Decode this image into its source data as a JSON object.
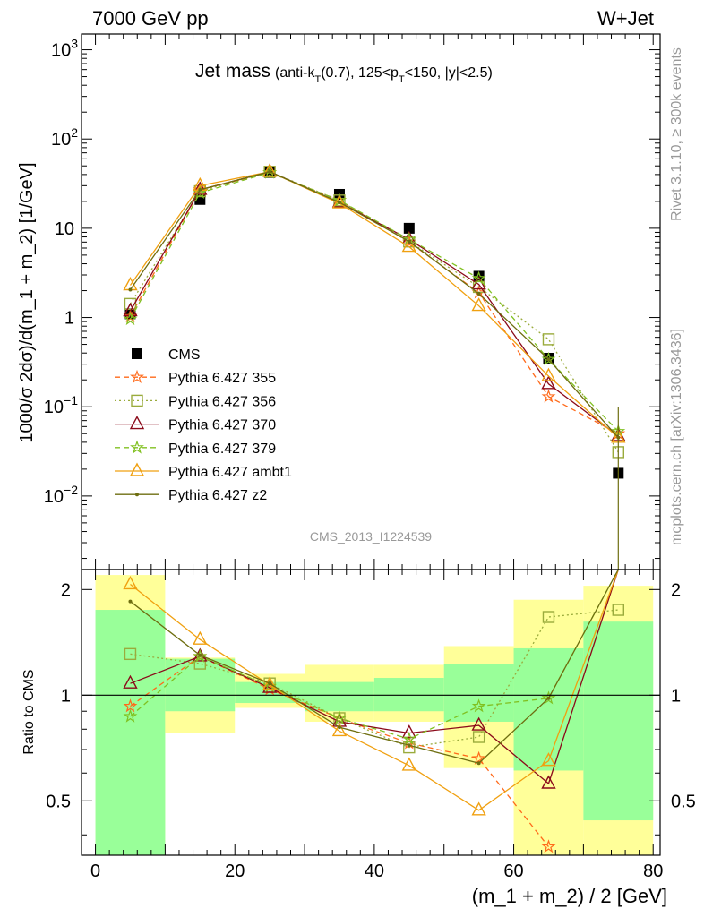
{
  "header": {
    "energy_label": "7000 GeV pp",
    "process_label": "W+Jet",
    "plot_title": "Jet mass",
    "plot_subtitle": "(anti-kT(0.7), 125<pT<150, |y|<2.5)",
    "side_label_rivet": "Rivet 3.1.10, ≥ 300k events",
    "side_label_source": "mcplots.cern.ch [arXiv:1306.3436]",
    "analysis_id": "CMS_2013_I1224539"
  },
  "chart_data": [
    {
      "panel": "main",
      "type": "scatter",
      "ylabel": "1000/σ 2dσ)/d(m_1 + m_2) [1/GeV]",
      "yscale": "log",
      "ylim": [
        0.0015,
        1500
      ],
      "xlim": [
        -2,
        81
      ],
      "y_tick_labels": [
        "10^-2",
        "10^-1",
        "1",
        "10",
        "10^2",
        "10^3"
      ],
      "legend_position": "left, below middle",
      "x": [
        5,
        15,
        25,
        35,
        45,
        55,
        65,
        75
      ],
      "series": [
        {
          "name": "CMS",
          "style": "data",
          "color": "#000000",
          "marker": "square-filled",
          "line": "none",
          "values": [
            1.1,
            21,
            42,
            24,
            10,
            2.9,
            0.35,
            0.018
          ]
        },
        {
          "name": "Pythia 6.427 355",
          "style": "mc",
          "color": "#ff6a1a",
          "marker": "star",
          "line": "dashed",
          "values": [
            1.03,
            27,
            42,
            20.5,
            7.0,
            1.9,
            0.13,
            0.05
          ]
        },
        {
          "name": "Pythia 6.427 356",
          "style": "mc",
          "color": "#9aab3c",
          "marker": "square-open",
          "line": "dotted",
          "values": [
            1.42,
            26,
            43,
            20.5,
            7.1,
            2.2,
            0.57,
            0.031
          ]
        },
        {
          "name": "Pythia 6.427 370",
          "style": "mc",
          "color": "#8b0a1a",
          "marker": "triangle-open",
          "line": "solid",
          "values": [
            1.18,
            27,
            43,
            19.5,
            7.5,
            2.35,
            0.18,
            0.047
          ]
        },
        {
          "name": "Pythia 6.427 379",
          "style": "mc",
          "color": "#80c020",
          "marker": "star",
          "line": "dashed",
          "values": [
            0.96,
            25,
            42,
            20.5,
            7.5,
            2.75,
            0.34,
            0.053
          ]
        },
        {
          "name": "Pythia 6.427 ambt1",
          "style": "mc",
          "color": "#f0a010",
          "marker": "triangle-open",
          "line": "solid",
          "values": [
            2.3,
            30,
            43,
            19,
            6.2,
            1.35,
            0.22,
            0.045
          ]
        },
        {
          "name": "Pythia 6.427 z2",
          "style": "mc",
          "color": "#6e6e10",
          "marker": "dot",
          "line": "solid",
          "values": [
            2.05,
            27,
            43,
            19.5,
            7.1,
            1.85,
            0.34,
            0.045
          ]
        }
      ]
    },
    {
      "panel": "ratio",
      "type": "line",
      "ylabel": "Ratio to CMS",
      "xlabel": "(m_1 + m_2) / 2 [GeV]",
      "ylim": [
        0.35,
        2.28
      ],
      "xlim": [
        -2,
        81
      ],
      "x_ticks": [
        0,
        20,
        40,
        60,
        80
      ],
      "y_tick_labels": [
        "0.5",
        "1",
        "2"
      ],
      "bands": {
        "bin_edges": [
          0,
          10,
          20,
          30,
          40,
          50,
          60,
          70,
          80
        ],
        "yellow_low": [
          0.2,
          0.78,
          0.92,
          0.84,
          0.84,
          0.62,
          0.2,
          0.2
        ],
        "yellow_high": [
          2.2,
          1.28,
          1.15,
          1.22,
          1.22,
          1.38,
          1.87,
          2.05
        ],
        "green_low": [
          0.2,
          0.9,
          0.95,
          0.9,
          0.9,
          0.84,
          0.61,
          0.44
        ],
        "green_high": [
          1.75,
          1.27,
          1.09,
          1.09,
          1.12,
          1.23,
          1.36,
          1.62
        ],
        "yellow_color": "#ffff99",
        "green_color": "#99ff99"
      },
      "x": [
        5,
        15,
        25,
        35,
        45,
        55,
        65,
        75
      ],
      "series": [
        {
          "name": "Pythia 6.427 355",
          "color": "#ff6a1a",
          "values": [
            0.93,
            1.29,
            1.04,
            0.86,
            0.73,
            0.66,
            0.37,
            null
          ]
        },
        {
          "name": "Pythia 6.427 356",
          "color": "#9aab3c",
          "values": [
            1.31,
            1.23,
            1.08,
            0.86,
            0.71,
            0.76,
            1.67,
            1.75
          ]
        },
        {
          "name": "Pythia 6.427 370",
          "color": "#8b0a1a",
          "values": [
            1.08,
            1.29,
            1.05,
            0.84,
            0.78,
            0.82,
            0.56,
            2.5
          ]
        },
        {
          "name": "Pythia 6.427 379",
          "color": "#80c020",
          "values": [
            0.87,
            1.29,
            1.06,
            0.86,
            0.75,
            0.93,
            0.98,
            2.9
          ]
        },
        {
          "name": "Pythia 6.427 ambt1",
          "color": "#f0a010",
          "values": [
            2.07,
            1.44,
            1.07,
            0.79,
            0.63,
            0.47,
            0.65,
            2.5
          ]
        },
        {
          "name": "Pythia 6.427 z2",
          "color": "#6e6e10",
          "values": [
            1.85,
            1.3,
            1.08,
            0.81,
            0.72,
            0.64,
            0.98,
            2.5
          ]
        }
      ]
    }
  ]
}
